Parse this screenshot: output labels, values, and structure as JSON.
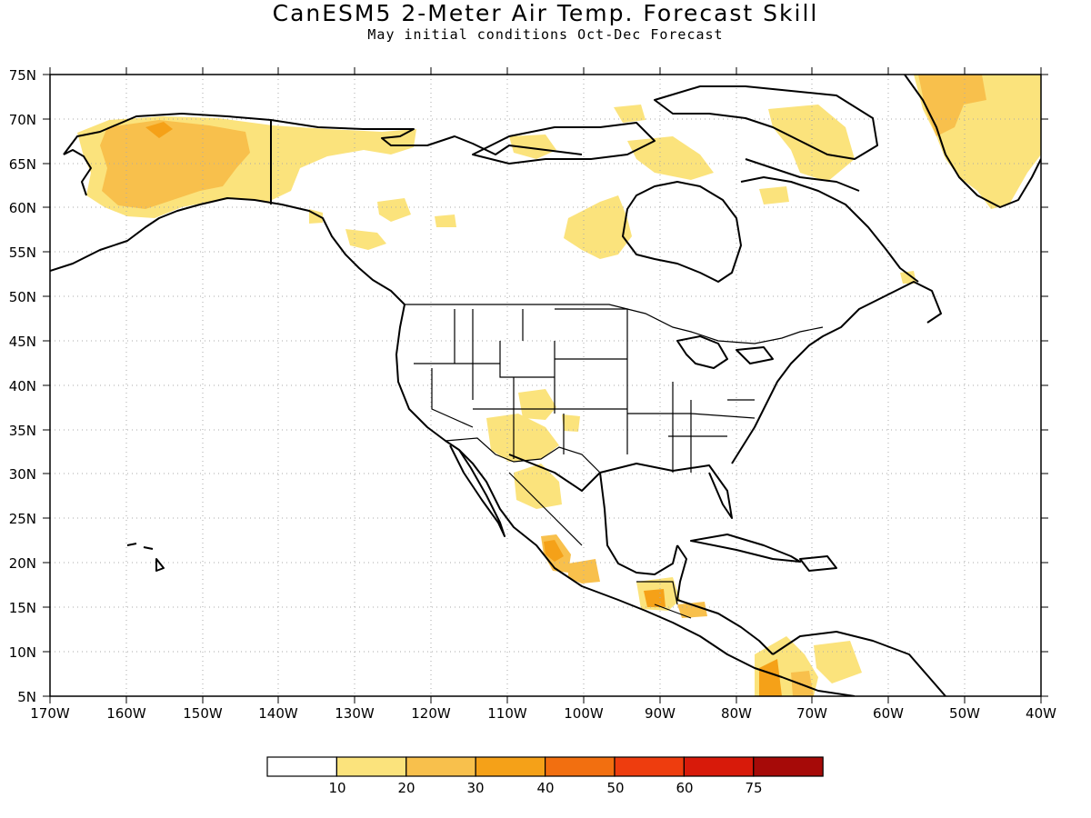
{
  "title": "CanESM5 2-Meter Air Temp. Forecast Skill",
  "subtitle": "May initial conditions  Oct-Dec Forecast",
  "lat_labels": [
    "75N",
    "70N",
    "65N",
    "60N",
    "55N",
    "50N",
    "45N",
    "40N",
    "35N",
    "30N",
    "25N",
    "20N",
    "15N",
    "10N",
    "5N"
  ],
  "lon_labels": [
    "170W",
    "160W",
    "150W",
    "140W",
    "130W",
    "120W",
    "110W",
    "100W",
    "90W",
    "80W",
    "70W",
    "60W",
    "50W",
    "40W"
  ],
  "colorbar": {
    "colors": [
      "#ffffff",
      "#fbe37c",
      "#f8c04c",
      "#f5a118",
      "#f26f10",
      "#ee3d0e",
      "#d81a0a",
      "#a60a08"
    ],
    "labels": [
      "10",
      "20",
      "30",
      "40",
      "50",
      "60",
      "75"
    ]
  },
  "skill_shading": {
    "alaska": {
      "level": "20-30",
      "color": "#f8c04c"
    },
    "alaska_core": {
      "level": "30-40",
      "color": "#f5a118"
    },
    "yukon": {
      "level": "10-20",
      "color": "#fbe37c"
    },
    "hudson_bay_west": {
      "level": "10-20",
      "color": "#fbe37c"
    },
    "greenland": {
      "level": "10-20",
      "color": "#fbe37c"
    },
    "greenland_east": {
      "level": "20-30",
      "color": "#f8c04c"
    },
    "southwest_us": {
      "level": "10-20",
      "color": "#fbe37c"
    },
    "mexico_west": {
      "level": "20-40",
      "color": "#f5a118"
    },
    "central_america": {
      "level": "20-40",
      "color": "#f5a118"
    },
    "colombia": {
      "level": "20-40",
      "color": "#f5a118"
    }
  }
}
